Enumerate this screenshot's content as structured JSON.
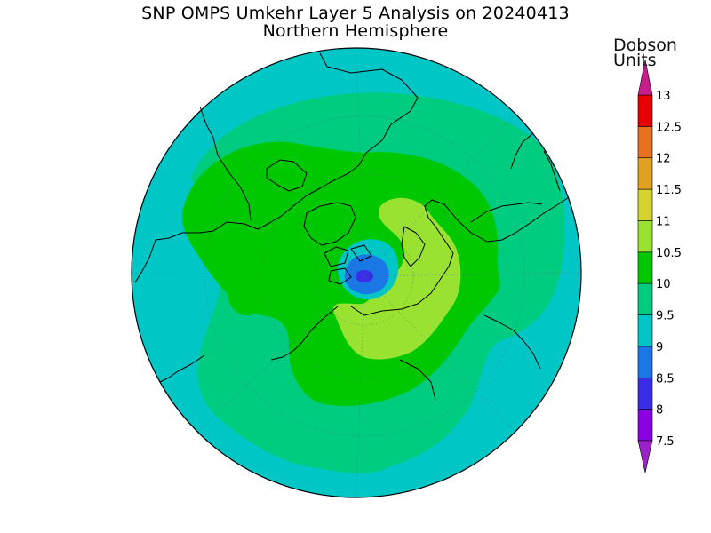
{
  "title": "SNP OMPS Umkehr Layer 5 Analysis on 20240413",
  "subtitle": "Northern Hemisphere",
  "colorbar": {
    "units_line1": "Dobson",
    "units_line2": "Units",
    "levels": [
      "7.5",
      "8",
      "8.5",
      "9",
      "9.5",
      "10",
      "10.5",
      "11",
      "11.5",
      "12",
      "12.5",
      "13"
    ],
    "colors": [
      "#8a00e0",
      "#3a2de8",
      "#1a78e6",
      "#00c6c6",
      "#00cc80",
      "#00c800",
      "#99e232",
      "#d4d42e",
      "#e0a020",
      "#e87020",
      "#e80000",
      "#c81e8c"
    ],
    "bottom_arrow_color": "#9a20c8",
    "top_arrow_color": "#c81e8c"
  },
  "map": {
    "projection": "north-polar-stereographic",
    "field_colors": {
      "cyan_9_9p5": "#00c6c6",
      "green_9p5_10": "#00cc80",
      "green_10_10p5": "#00c800",
      "lime_10p5_11": "#99e232",
      "blue_8p5_9": "#1a78e6",
      "dark_blue_8_8p5": "#3a2de8"
    }
  }
}
